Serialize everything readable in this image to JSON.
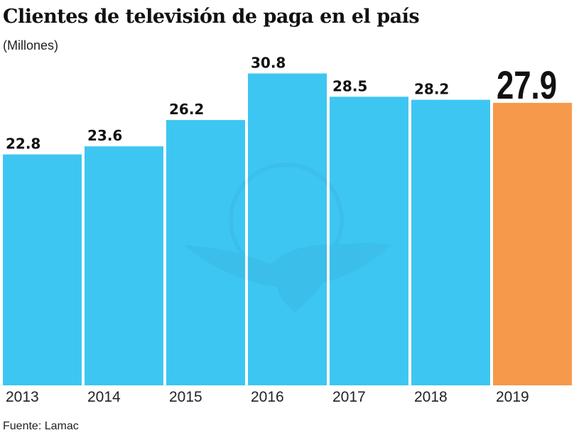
{
  "chart_data": {
    "type": "bar",
    "title": "Clientes de televisión de paga en el país",
    "subtitle": "(Millones)",
    "source": "Fuente: Lamac",
    "xlabel": "",
    "ylabel": "",
    "ylim": [
      0,
      38
    ],
    "grid": false,
    "categories": [
      "2013",
      "2014",
      "2015",
      "2016",
      "2017",
      "2018",
      "2019"
    ],
    "values": [
      22.8,
      23.6,
      26.2,
      30.8,
      28.5,
      28.2,
      27.9
    ],
    "value_labels": [
      "22.8",
      "23.6",
      "26.2",
      "30.8",
      "28.5",
      "28.2",
      "27.9"
    ],
    "highlight_index": 6,
    "colors": {
      "bar": "#3ec6f2",
      "highlight": "#f7994a"
    }
  }
}
